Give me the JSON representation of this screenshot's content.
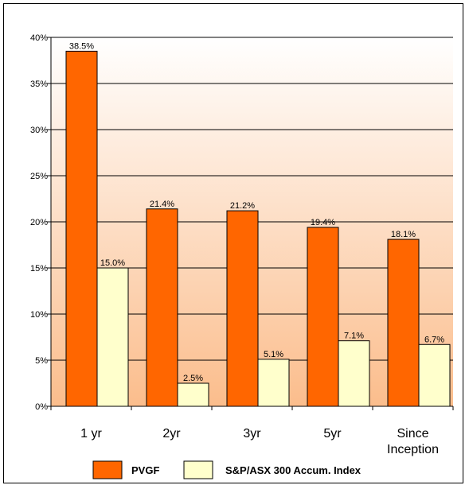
{
  "chart_data": {
    "type": "bar",
    "title": "",
    "xlabel": "",
    "ylabel": "",
    "categories": [
      [
        "1 yr"
      ],
      [
        "2yr"
      ],
      [
        "3yr"
      ],
      [
        "5yr"
      ],
      [
        "Since",
        "Inception"
      ]
    ],
    "series": [
      {
        "name": "PVGF",
        "color": "#ff6600",
        "values": [
          38.5,
          21.4,
          21.2,
          19.4,
          18.1
        ],
        "labels": [
          "38.5%",
          "21.4%",
          "21.2%",
          "19.4%",
          "18.1%"
        ]
      },
      {
        "name": "S&P/ASX 300 Accum. Index",
        "color": "#ffffcc",
        "values": [
          15.0,
          2.5,
          5.1,
          7.1,
          6.7
        ],
        "labels": [
          "15.0%",
          "2.5%",
          "5.1%",
          "7.1%",
          "6.7%"
        ]
      }
    ],
    "ylim": [
      0,
      40
    ],
    "yticks": [
      0,
      5,
      10,
      15,
      20,
      25,
      30,
      35,
      40
    ],
    "ytick_labels": [
      "0%",
      "5%",
      "10%",
      "15%",
      "20%",
      "25%",
      "30%",
      "35%",
      "40%"
    ],
    "grid": true,
    "legend": "bottom",
    "background_gradient": [
      "#ffffff",
      "#fbbd8c"
    ]
  }
}
